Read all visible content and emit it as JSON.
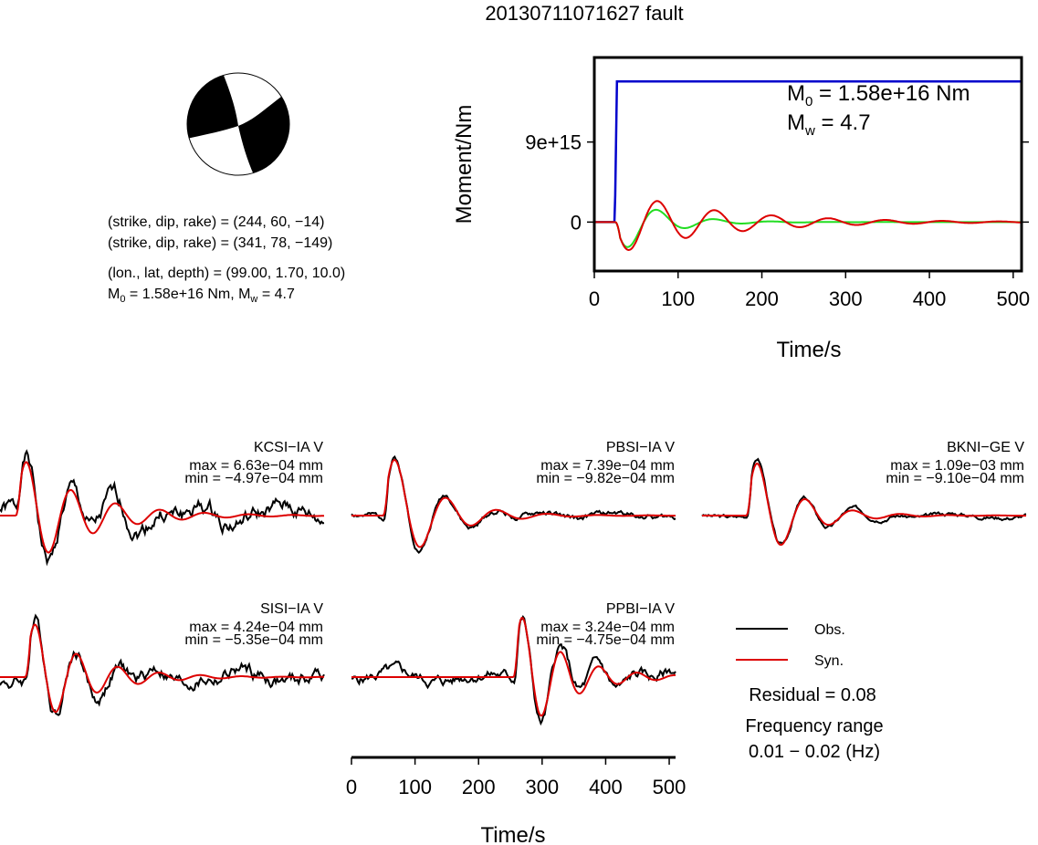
{
  "title": "20130711071627 fault",
  "beachball": {
    "fill": "#000000",
    "background": "#ffffff"
  },
  "info": {
    "line1": "(strike, dip, rake) = (244, 60, −14)",
    "line2": "(strike, dip, rake) = (341, 78, −149)",
    "line3": "(lon., lat, depth) = (99.00, 1.70, 10.0)",
    "line4_m0": "M",
    "line4_sub": "0",
    "line4_rest": " = 1.58e+16 Nm, M",
    "line4_sub2": "w",
    "line4_end": " = 4.7"
  },
  "moment_panel": {
    "ylabel": "Moment/Nm",
    "xlabel": "Time/s",
    "m0_main": "M",
    "m0_sub": "0",
    "m0_rest": " = 1.58e+16 Nm",
    "mw_main": "M",
    "mw_sub": "w",
    "mw_rest": " = 4.7"
  },
  "chart_data": [
    {
      "type": "line",
      "id": "moment-rate",
      "xlabel": "Time/s",
      "ylabel": "Moment/Nm",
      "xlim": [
        0,
        510
      ],
      "ylim": [
        -5500000000000000.0,
        1.85e+16
      ],
      "xticks": [
        0,
        100,
        200,
        300,
        400,
        500
      ],
      "yticks": [
        {
          "value": 0,
          "label": "0"
        },
        {
          "value": 9000000000000000.0,
          "label": "9e+15"
        }
      ],
      "series": [
        {
          "color": "#0000cc",
          "kind": "moment",
          "x": [
            0,
            24,
            25,
            27,
            510
          ],
          "y": [
            0,
            0,
            3000000000000000.0,
            1.58e+16,
            1.58e+16
          ]
        },
        {
          "color": "#22dd22",
          "kind": "stf",
          "t0": 25,
          "amp": 3900000000000000.0,
          "period": 68,
          "decay": 48
        },
        {
          "color": "#dd0000",
          "kind": "stf",
          "t0": 25,
          "amp": 3600000000000000.0,
          "period": 68,
          "decay": 120
        }
      ]
    },
    {
      "type": "line",
      "id": "waveforms",
      "xlabel": "Time/s",
      "xlim": [
        0,
        510
      ],
      "xticks": [
        0,
        100,
        200,
        300,
        400,
        500
      ],
      "stations": [
        {
          "name": "KCSI−IA V",
          "max": "max = 6.63e−04 mm",
          "min": "min = −4.97e−04 mm",
          "t0": 25,
          "period": 70,
          "decay": 95,
          "amp": 70,
          "noise": 12,
          "seed": 1
        },
        {
          "name": "PBSI−IA V",
          "max": "max = 7.39e−04 mm",
          "min": "min = −9.82e−04 mm",
          "t0": 50,
          "period": 80,
          "decay": 70,
          "amp": 80,
          "noise": 4,
          "seed": 2
        },
        {
          "name": "BKNI−GE V",
          "max": "max = 1.09e−03 mm",
          "min": "min = −9.10e−04 mm",
          "t0": 70,
          "period": 75,
          "decay": 65,
          "amp": 75,
          "noise": 3,
          "seed": 3
        },
        {
          "name": "SISI−IA V",
          "max": "max = 4.24e−04 mm",
          "min": "min = −5.35e−04 mm",
          "t0": 40,
          "period": 65,
          "decay": 80,
          "amp": 70,
          "noise": 10,
          "seed": 4
        },
        {
          "name": "PPBI−IA V",
          "max": "max = 3.24e−04 mm",
          "min": "min = −4.75e−04 mm",
          "t0": 255,
          "period": 60,
          "decay": 70,
          "amp": 80,
          "noise": 8,
          "seed": 5
        }
      ]
    }
  ],
  "legend": {
    "obs_label": "Obs.",
    "syn_label": "Syn.",
    "obs_color": "#000000",
    "syn_color": "#dd0000",
    "residual": "Residual = 0.08",
    "freq_title": "Frequency range",
    "freq_value": "0.01 − 0.02 (Hz)"
  }
}
